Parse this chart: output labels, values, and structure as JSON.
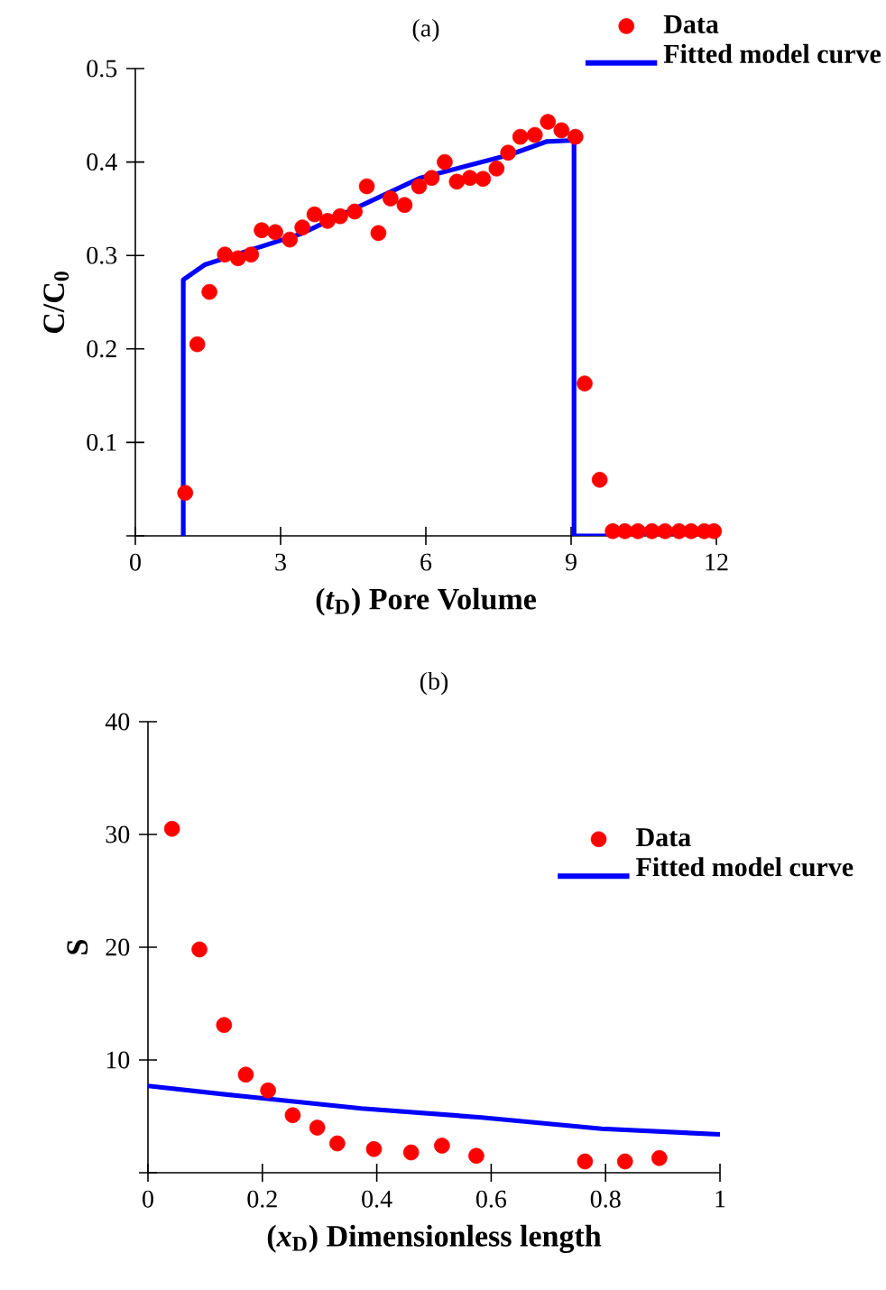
{
  "chart_data": [
    {
      "type": "scatter",
      "title": "(a)",
      "xlabel": "(*t*$_{D}$) Pore Volume",
      "ylabel": "C/C$_{0}$",
      "xlim": [
        0,
        12
      ],
      "ylim": [
        0,
        0.5
      ],
      "xticks": [
        0,
        3,
        6,
        9,
        12
      ],
      "yticks": [
        {
          "value": 0,
          "label": null
        },
        0.1,
        0.2,
        0.3,
        0.4,
        0.5
      ],
      "legend": "top right",
      "series": [
        {
          "name": "Data",
          "type": "scatter",
          "marker": "circle",
          "color": "#ff0000",
          "x": [
            1.03,
            1.28,
            1.53,
            1.85,
            2.12,
            2.39,
            2.61,
            2.89,
            3.19,
            3.45,
            3.7,
            3.97,
            4.23,
            4.53,
            4.78,
            5.02,
            5.27,
            5.56,
            5.86,
            6.12,
            6.39,
            6.64,
            6.91,
            7.18,
            7.46,
            7.7,
            7.95,
            8.25,
            8.52,
            8.8,
            9.09,
            9.28,
            9.59,
            9.86,
            10.11,
            10.38,
            10.67,
            10.94,
            11.23,
            11.48,
            11.75,
            11.95
          ],
          "values": [
            0.046,
            0.205,
            0.261,
            0.301,
            0.297,
            0.301,
            0.327,
            0.325,
            0.317,
            0.33,
            0.344,
            0.337,
            0.342,
            0.347,
            0.374,
            0.324,
            0.361,
            0.354,
            0.374,
            0.383,
            0.4,
            0.379,
            0.383,
            0.382,
            0.393,
            0.41,
            0.427,
            0.429,
            0.443,
            0.434,
            0.427,
            0.163,
            0.06,
            0.005,
            0.005,
            0.005,
            0.005,
            0.005,
            0.005,
            0.005,
            0.005,
            0.005
          ]
        },
        {
          "name": "Fitted model curve",
          "type": "line",
          "marker": "none",
          "line_style": "solid",
          "color": "#0000ff",
          "x": [
            0.99,
            0.99,
            1.43,
            3.41,
            5.89,
            7.75,
            8.5,
            8.97,
            9.06,
            9.06,
            12
          ],
          "values": [
            0,
            0.274,
            0.29,
            0.323,
            0.383,
            0.408,
            0.422,
            0.423,
            0.423,
            0,
            0
          ]
        }
      ]
    },
    {
      "type": "scatter",
      "title": "(b)",
      "xlabel": "(*x*$_{D}$) Dimensionless length",
      "ylabel": "S",
      "xlim": [
        0,
        1
      ],
      "ylim": [
        0,
        40
      ],
      "xticks": [
        0,
        0.2,
        0.4,
        0.6,
        0.8,
        1
      ],
      "yticks": [
        {
          "value": 0,
          "label": null
        },
        10,
        20,
        30,
        40
      ],
      "legend": "right",
      "series": [
        {
          "name": "Data",
          "type": "scatter",
          "marker": "circle",
          "color": "#ff0000",
          "x": [
            0.042,
            0.09,
            0.133,
            0.171,
            0.21,
            0.253,
            0.296,
            0.331,
            0.395,
            0.46,
            0.514,
            0.574,
            0.764,
            0.834,
            0.894
          ],
          "values": [
            30.5,
            19.8,
            13.1,
            8.7,
            7.3,
            5.1,
            4.0,
            2.6,
            2.1,
            1.8,
            2.4,
            1.5,
            1.0,
            1.0,
            1.3
          ]
        },
        {
          "name": "Fitted model curve",
          "type": "line",
          "marker": "none",
          "line_style": "solid",
          "color": "#0000ff",
          "x": [
            0,
            0.163,
            0.373,
            0.583,
            0.793,
            1
          ],
          "values": [
            7.7,
            6.8,
            5.7,
            4.9,
            3.9,
            3.4
          ]
        }
      ]
    }
  ]
}
